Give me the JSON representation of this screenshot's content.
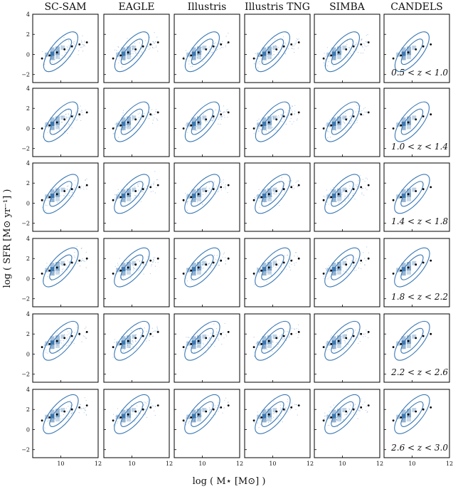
{
  "chart_data": {
    "type": "scatter",
    "description_of_marks": "2D histogram + density contours with running median points",
    "columns": [
      "SC-SAM",
      "EAGLE",
      "Illustris",
      "Illustris TNG",
      "SIMBA",
      "CANDELS"
    ],
    "rows": [
      "0.5 < z < 1.0",
      "1.0 < z < 1.4",
      "1.4 < z < 1.8",
      "1.8 < z < 2.2",
      "2.2 < z < 2.6",
      "2.6 < z < 3.0"
    ],
    "xlabel": "log ( M⋆ [M⊙] )",
    "ylabel": "log ( SFR [M⊙ yr⁻¹] )",
    "xlim": [
      8.5,
      12
    ],
    "ylim": [
      -2.8,
      4
    ],
    "xticks": [
      10,
      12
    ],
    "yticks": [
      -2,
      0,
      2,
      4
    ],
    "xtick_labels": [
      "10",
      "12"
    ],
    "ytick_labels": [
      "−2",
      "0",
      "2",
      "4"
    ],
    "contour_color": "#3a78b5",
    "heatmap_color": "#2b6aa6",
    "median_color": "#000000",
    "grid": false,
    "median_sfr_by_row": [
      [
        -0.4,
        -0.1,
        0.2,
        0.5,
        0.8,
        1.0,
        1.2
      ],
      [
        0.0,
        0.3,
        0.6,
        0.9,
        1.2,
        1.4,
        1.6
      ],
      [
        0.3,
        0.6,
        0.9,
        1.2,
        1.4,
        1.6,
        1.8
      ],
      [
        0.5,
        0.8,
        1.1,
        1.4,
        1.6,
        1.8,
        2.0
      ],
      [
        0.7,
        1.0,
        1.3,
        1.6,
        1.8,
        2.0,
        2.2
      ],
      [
        0.9,
        1.2,
        1.5,
        1.8,
        2.0,
        2.2,
        2.4
      ]
    ],
    "median_mass_bins": [
      9.0,
      9.4,
      9.8,
      10.2,
      10.6,
      11.0,
      11.4
    ]
  }
}
